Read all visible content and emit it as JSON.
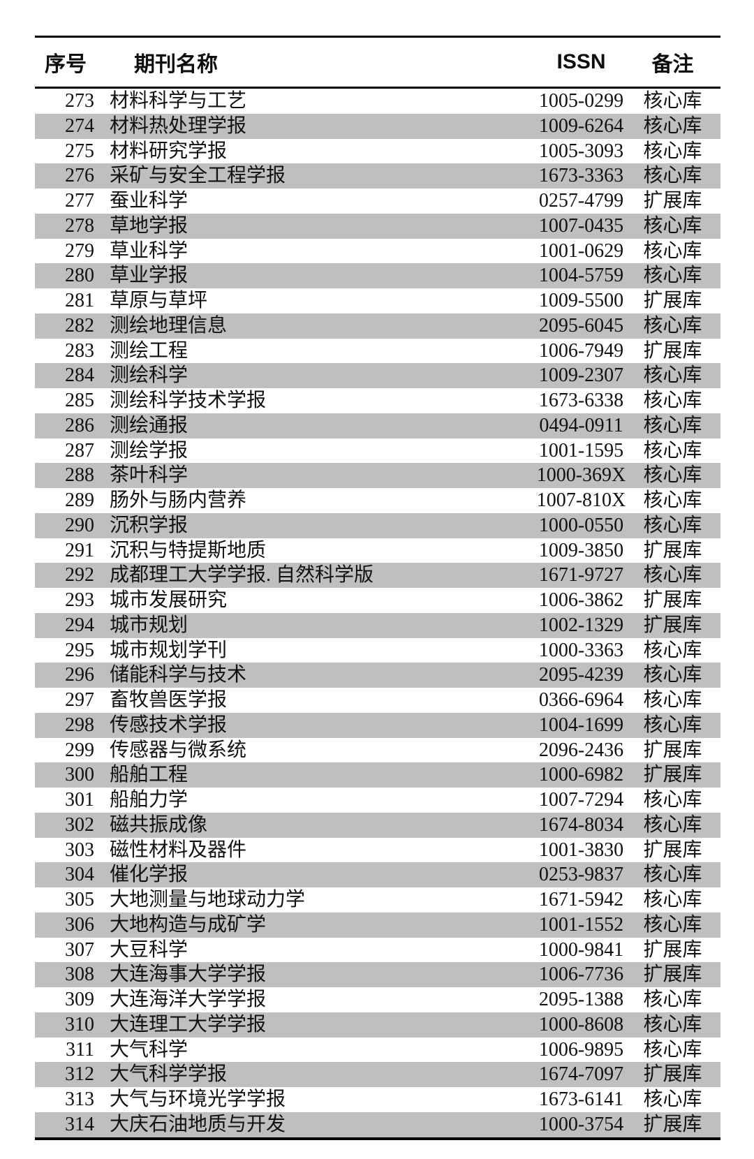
{
  "colors": {
    "stripe": "#bfbfbf",
    "rule": "#000000",
    "text": "#111111",
    "background": "#ffffff"
  },
  "table": {
    "columns": {
      "num": "序号",
      "name": "期刊名称",
      "issn": "ISSN",
      "remark": "备注"
    },
    "rows": [
      {
        "num": "273",
        "name": "材料科学与工艺",
        "issn": "1005-0299",
        "remark": "核心库"
      },
      {
        "num": "274",
        "name": "材料热处理学报",
        "issn": "1009-6264",
        "remark": "核心库"
      },
      {
        "num": "275",
        "name": "材料研究学报",
        "issn": "1005-3093",
        "remark": "核心库"
      },
      {
        "num": "276",
        "name": "采矿与安全工程学报",
        "issn": "1673-3363",
        "remark": "核心库"
      },
      {
        "num": "277",
        "name": "蚕业科学",
        "issn": "0257-4799",
        "remark": "扩展库"
      },
      {
        "num": "278",
        "name": "草地学报",
        "issn": "1007-0435",
        "remark": "核心库"
      },
      {
        "num": "279",
        "name": "草业科学",
        "issn": "1001-0629",
        "remark": "核心库"
      },
      {
        "num": "280",
        "name": "草业学报",
        "issn": "1004-5759",
        "remark": "核心库"
      },
      {
        "num": "281",
        "name": "草原与草坪",
        "issn": "1009-5500",
        "remark": "扩展库"
      },
      {
        "num": "282",
        "name": "测绘地理信息",
        "issn": "2095-6045",
        "remark": "核心库"
      },
      {
        "num": "283",
        "name": "测绘工程",
        "issn": "1006-7949",
        "remark": "扩展库"
      },
      {
        "num": "284",
        "name": "测绘科学",
        "issn": "1009-2307",
        "remark": "核心库"
      },
      {
        "num": "285",
        "name": "测绘科学技术学报",
        "issn": "1673-6338",
        "remark": "核心库"
      },
      {
        "num": "286",
        "name": "测绘通报",
        "issn": "0494-0911",
        "remark": "核心库"
      },
      {
        "num": "287",
        "name": "测绘学报",
        "issn": "1001-1595",
        "remark": "核心库"
      },
      {
        "num": "288",
        "name": "茶叶科学",
        "issn": "1000-369X",
        "remark": "核心库"
      },
      {
        "num": "289",
        "name": "肠外与肠内营养",
        "issn": "1007-810X",
        "remark": "核心库"
      },
      {
        "num": "290",
        "name": "沉积学报",
        "issn": "1000-0550",
        "remark": "核心库"
      },
      {
        "num": "291",
        "name": "沉积与特提斯地质",
        "issn": "1009-3850",
        "remark": "扩展库"
      },
      {
        "num": "292",
        "name": "成都理工大学学报. 自然科学版",
        "issn": "1671-9727",
        "remark": "核心库"
      },
      {
        "num": "293",
        "name": "城市发展研究",
        "issn": "1006-3862",
        "remark": "扩展库"
      },
      {
        "num": "294",
        "name": "城市规划",
        "issn": "1002-1329",
        "remark": "扩展库"
      },
      {
        "num": "295",
        "name": "城市规划学刊",
        "issn": "1000-3363",
        "remark": "核心库"
      },
      {
        "num": "296",
        "name": "储能科学与技术",
        "issn": "2095-4239",
        "remark": "核心库"
      },
      {
        "num": "297",
        "name": "畜牧兽医学报",
        "issn": "0366-6964",
        "remark": "核心库"
      },
      {
        "num": "298",
        "name": "传感技术学报",
        "issn": "1004-1699",
        "remark": "核心库"
      },
      {
        "num": "299",
        "name": "传感器与微系统",
        "issn": "2096-2436",
        "remark": "扩展库"
      },
      {
        "num": "300",
        "name": "船舶工程",
        "issn": "1000-6982",
        "remark": "扩展库"
      },
      {
        "num": "301",
        "name": "船舶力学",
        "issn": "1007-7294",
        "remark": "核心库"
      },
      {
        "num": "302",
        "name": "磁共振成像",
        "issn": "1674-8034",
        "remark": "核心库"
      },
      {
        "num": "303",
        "name": "磁性材料及器件",
        "issn": "1001-3830",
        "remark": "扩展库"
      },
      {
        "num": "304",
        "name": "催化学报",
        "issn": "0253-9837",
        "remark": "核心库"
      },
      {
        "num": "305",
        "name": "大地测量与地球动力学",
        "issn": "1671-5942",
        "remark": "核心库"
      },
      {
        "num": "306",
        "name": "大地构造与成矿学",
        "issn": "1001-1552",
        "remark": "核心库"
      },
      {
        "num": "307",
        "name": "大豆科学",
        "issn": "1000-9841",
        "remark": "扩展库"
      },
      {
        "num": "308",
        "name": "大连海事大学学报",
        "issn": "1006-7736",
        "remark": "扩展库"
      },
      {
        "num": "309",
        "name": "大连海洋大学学报",
        "issn": "2095-1388",
        "remark": "核心库"
      },
      {
        "num": "310",
        "name": "大连理工大学学报",
        "issn": "1000-8608",
        "remark": "核心库"
      },
      {
        "num": "311",
        "name": "大气科学",
        "issn": "1006-9895",
        "remark": "核心库"
      },
      {
        "num": "312",
        "name": "大气科学学报",
        "issn": "1674-7097",
        "remark": "扩展库"
      },
      {
        "num": "313",
        "name": "大气与环境光学学报",
        "issn": "1673-6141",
        "remark": "核心库"
      },
      {
        "num": "314",
        "name": "大庆石油地质与开发",
        "issn": "1000-3754",
        "remark": "扩展库"
      }
    ]
  }
}
